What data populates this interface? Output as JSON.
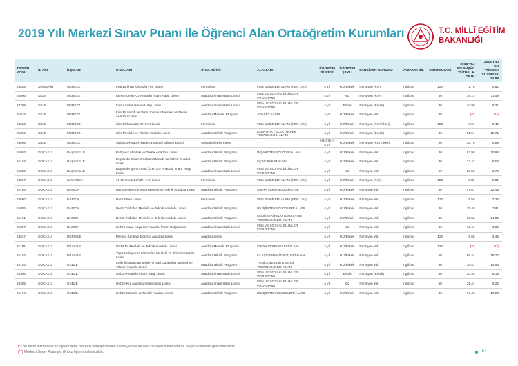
{
  "title": "2019 Yılı Merkezi Sınav Puanı ile Öğrenci Alan Ortaöğretim Kurumları",
  "logo": {
    "line1": "T.C. MİLLÎ EĞİTİM",
    "line2": "BAKANLIĞI",
    "color": "#c8102e"
  },
  "columns": [
    "TERCİH KODU",
    "İL ADI",
    "İLÇE ADI",
    "OKUL ADI",
    "OKUL TÜRÜ",
    "ALAN ADI",
    "ÖĞRETİM SÜRESİ",
    "ÖĞRETİM ŞEKLİ",
    "PANSİYON DURUMU",
    "YABANCI DİL",
    "KONTENJANI",
    "2018 YILI EN DÜŞÜK YÜZDELİK DİLİM",
    "2018 YILI EN YÜKSEK YÜZDELİK DİLİM"
  ],
  "rows": [
    [
      "24626",
      "KIRŞEHİR",
      "MERKEZ",
      "Prof.Dr.İlhan Kılıçözlü Fen Lisesi",
      "Fen Lisesi",
      "FEN BİLİMLERİ ALANI (FEN LİS.)",
      "4 yıl",
      "Kız/Erkek",
      "Pansiyon (Kız)",
      "İngilizce",
      "120",
      "1.78",
      "0.51"
    ],
    [
      "24606",
      "KİLİS",
      "MERKEZ",
      "Ekrem Çetin Kız Anadolu İmam Hatip Lisesi",
      "Anadolu İmam Hatip Lisesi",
      "FEN VE SOSYAL BİLİMLER PROGRAMI",
      "4 yıl",
      "Kız",
      "Pansiyon (Kız)",
      "İngilizce",
      "30",
      "36.14",
      "11.59"
    ],
    [
      "24799",
      "KİLİS",
      "MERKEZ",
      "Kilis Anadolu İmam Hatip Lisesi",
      "Anadolu İmam Hatip Lisesi",
      "FEN VE SOSYAL BİLİMLER PROGRAMI",
      "4 yıl",
      "Erkek",
      "Pansiyon (Erkek)",
      "İngilizce",
      "30",
      "40.90",
      "8.21"
    ],
    [
      "31016",
      "KİLİS",
      "MERKEZ",
      "Kilis M. Hanifi ve Ömer Cumhur Mesleki ve Teknik Anadolu Lisesi",
      "Anadolu Mesleki Program",
      "ADALET ALANI",
      "4 yıl",
      "Kız/Erkek",
      "Pansiyon Yok",
      "İngilizce",
      "30",
      "(**)",
      "(**)"
    ],
    [
      "24623",
      "KİLİS",
      "MERKEZ",
      "Kilis Mehmet Zeytin Fen Lisesi",
      "Fen Lisesi",
      "FEN BİLİMLERİ ALANI (FEN LİS.)",
      "4 yıl",
      "Kız/Erkek",
      "Pansiyon (Kız/Erkek)",
      "İngilizce",
      "120",
      "6.91",
      "0.41"
    ],
    [
      "25369",
      "KİLİS",
      "MERKEZ",
      "Kilis Mesleki ve Teknik Anadolu Lisesi",
      "Anadolu Teknik Programı",
      "ELEKTRİK - ELEKTRONİK TEKNOLOJİSİ ALANI",
      "4 yıl",
      "Kız/Erkek",
      "Pansiyon (Erkek)",
      "İngilizce",
      "30",
      "51.94",
      "15.71"
    ],
    [
      "24008",
      "KİLİS",
      "MERKEZ",
      "Mübeccel-Suphi Yasayça Sosyal Bilimler Lisesi",
      "Sosyal Bilimler Lisesi",
      "-",
      "Hazırlık + 4 yıl",
      "Kız/Erkek",
      "Pansiyon (Kız/Erkek)",
      "İngilizce",
      "90",
      "26.70",
      "6.89"
    ],
    [
      "25902",
      "KOCAELİ",
      "BAŞİSKELE",
      "Bahçecik Mesleki ve Teknik Anadolu Lisesi",
      "Anadolu Teknik Programı",
      "İNŞAAT TEKNOLOJİSİ ALANI",
      "4 yıl",
      "Kız/Erkek",
      "Pansiyon Yok",
      "İngilizce",
      "30",
      "82.98",
      "20.98"
    ],
    [
      "25163",
      "KOCAELİ",
      "BAŞİSKELE",
      "Başiskele Selim Yürekten Mesleki ve Teknik Anadolu Lisesi",
      "Anadolu Teknik Programı",
      "UÇAK BAKIM ALANI",
      "4 yıl",
      "Kız/Erkek",
      "Pansiyon Yok",
      "İngilizce",
      "30",
      "23.47",
      "8.53"
    ],
    [
      "26308",
      "KOCAELİ",
      "BAŞİSKELE",
      "Başiskele Şehit Ozan Özen Kız Anadolu İmam Hatip Lisesi",
      "Anadolu İmam Hatip Lisesi",
      "FEN VE SOSYAL BİLİMLER PROGRAMI",
      "4 yıl",
      "Kız",
      "Pansiyon Yok",
      "İngilizce",
      "60",
      "23.55",
      "6.79"
    ],
    [
      "23837",
      "KOCAELİ",
      "ÇAYIROVA",
      "15 Temmuz Şehitler Fen Lisesi",
      "Fen Lisesi",
      "FEN BİLİMLERİ ALANI (FEN LİS.)",
      "4 yıl",
      "Kız/Erkek",
      "Pansiyon (Kız)",
      "İngilizce",
      "120",
      "5.86",
      "0.81"
    ],
    [
      "25164",
      "KOCAELİ",
      "DARICA",
      "Darıca Aslan Çimento Mesleki ve Teknik Anadolu Lisesi",
      "Anadolu Teknik Programı",
      "KİMYA TEKNOLOJİSİ ALANI",
      "4 yıl",
      "Kız/Erkek",
      "Pansiyon Yok",
      "İngilizce",
      "30",
      "47.01",
      "22.48"
    ],
    [
      "24580",
      "KOCAELİ",
      "DARICA",
      "Darıca Fen Lisesi",
      "Fen Lisesi",
      "FEN BİLİMLERİ ALANI (FEN LİS.)",
      "4 yıl",
      "Kız/Erkek",
      "Pansiyon Yok",
      "İngilizce",
      "120",
      "5.56",
      "2.34"
    ],
    [
      "25885",
      "KOCAELİ",
      "DARICA",
      "Deniz Yıldızları Mesleki ve Teknik Anadolu Lisesi",
      "Anadolu Teknik Programı",
      "BİLİŞİM TEKNOLOJİLERİ ALANI",
      "4 yıl",
      "Kız/Erkek",
      "Pansiyon Yok",
      "İngilizce",
      "30",
      "25.48",
      "7.81"
    ],
    [
      "25161",
      "KOCAELİ",
      "DARICA",
      "Deniz Yıldızları Mesleki ve Teknik Anadolu Lisesi",
      "Anadolu Teknik Programı",
      "ENDÜSTRİYEL OTOMASYON TEKNOLOJİLERİ ALANI",
      "4 yıl",
      "Kız/Erkek",
      "Pansiyon Yok",
      "İngilizce",
      "30",
      "32.52",
      "14.82"
    ],
    [
      "26307",
      "KOCAELİ",
      "DARICA",
      "Şehit Hasan Kaya Kız Anadolu İmam Hatip Lisesi",
      "Anadolu İmam Hatip Lisesi",
      "FEN VE SOSYAL BİLİMLER PROGRAMI",
      "4 yıl",
      "Kız",
      "Pansiyon Yok",
      "İngilizce",
      "30",
      "16.41",
      "3.09"
    ],
    [
      "24627",
      "KOCAELİ",
      "DERİNCE",
      "Merkez Bankası Derince Anadolu Lisesi",
      "Anadolu Lisesi",
      "-",
      "4 yıl",
      "Kız/Erkek",
      "Pansiyon Yok",
      "İngilizce",
      "120",
      "8.65",
      "4.45"
    ],
    [
      "31119",
      "KOCAELİ",
      "DİLOVASI",
      "GEBKİM Mesleki ve Teknik Anadolu Lisesi",
      "Anadolu Mesleki Programı",
      "KİMYA TEKNOLOJİSİ ALANI",
      "4 yıl",
      "Kız/Erkek",
      "Pansiyon Yok",
      "İngilizce",
      "120",
      "(**)",
      "(**)"
    ],
    [
      "25192",
      "KOCAELİ",
      "DİLOVASI",
      "Yılport Ulaştırma Hizmetleri Mesleki ve Teknik Anadolu Lisesi",
      "Anadolu Teknik Programı",
      "ULAŞTIRMA HİZMETLERİ ALANI",
      "4 yıl",
      "Kız/Erkek",
      "Pansiyon Yok",
      "İngilizce",
      "60",
      "59.44",
      "18.20"
    ],
    [
      "25193",
      "KOCAELİ",
      "GEBZE",
      "Çelik İhracatçıları Birliği Ali Nuri Çolakoğlu Mesleki ve Teknik Anadolu Lisesi",
      "Anadolu Teknik Programı",
      "YENİLENEBİLİR ENERJİ TEKNOLOJİLERİ ALANI",
      "4 yıl",
      "Kız/Erkek",
      "Pansiyon Yok",
      "İngilizce",
      "30",
      "36.51",
      "14.94"
    ],
    [
      "26306",
      "KOCAELİ",
      "GEBZE",
      "Gebze Anadolu İmam Hatip Lisesi",
      "Anadolu İmam Hatip Lisesi",
      "FEN VE SOSYAL BİLİMLER PROGRAMI",
      "4 yıl",
      "Erkek",
      "Pansiyon (Erkek)",
      "İngilizce",
      "60",
      "20.49",
      "6.18"
    ],
    [
      "26305",
      "KOCAELİ",
      "GEBZE",
      "Gebze Kız Anadolu İmam Hatip Lisesi",
      "Anadolu İmam Hatip Lisesi",
      "FEN VE SOSYAL BİLİMLER PROGRAMI",
      "4 yıl",
      "Kız",
      "Pansiyon Yok",
      "İngilizce",
      "60",
      "21.41",
      "6.22"
    ],
    [
      "25194",
      "KOCAELİ",
      "GEBZE",
      "Gebze Mesleki ve Teknik Anadolu Lisesi",
      "Anadolu Teknik Programı",
      "BİLİŞİM TEKNOLOJİLERİ ALANI",
      "4 yıl",
      "Kız/Erkek",
      "Pansiyon Yok",
      "İngilizce",
      "30",
      "37.40",
      "13.23"
    ]
  ],
  "footnotes": [
    {
      "mark": "(*)",
      "text": " Bu alanı tercih edecek öğrencilerin merkezi yerleştirmeden sonra yapılacak olan mülakat sınavında da başarılı olmaları gerekmektedir."
    },
    {
      "mark": "(**)",
      "text": " Merkezi Sınav Puanıyla ilk kez öğrenci alınacaktır."
    }
  ],
  "page_number": "54"
}
